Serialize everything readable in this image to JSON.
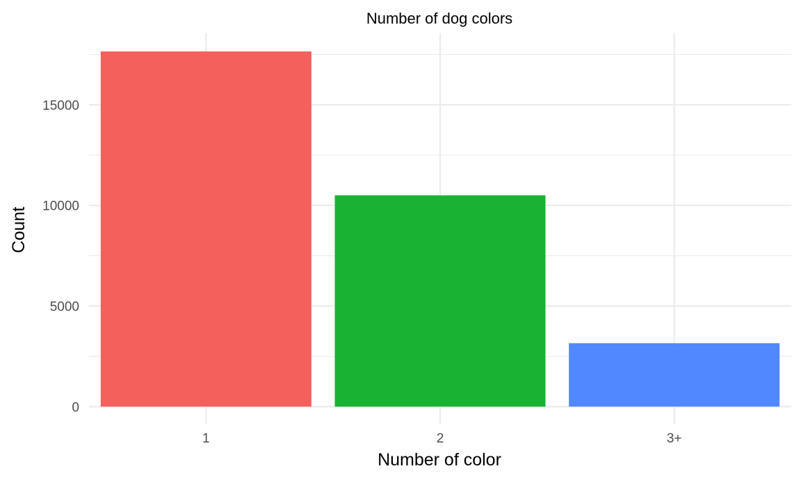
{
  "chart_data": {
    "type": "bar",
    "title": "Number of dog colors",
    "xlabel": "Number of color",
    "ylabel": "Count",
    "categories": [
      "1",
      "2",
      "3+"
    ],
    "values": [
      17650,
      10500,
      3150
    ],
    "colors": [
      "#F8766D",
      "#00BA38",
      "#619CFF"
    ],
    "bar_colors_rendered": [
      "#F4605B",
      "#1AB232",
      "#5288FF"
    ],
    "ylim": [
      -850,
      18550
    ],
    "yticks": [
      0,
      5000,
      10000,
      15000
    ],
    "ytick_labels": [
      "0",
      "5000",
      "10000",
      "15000"
    ],
    "grid": true,
    "legend": "none",
    "theme": "minimal"
  }
}
